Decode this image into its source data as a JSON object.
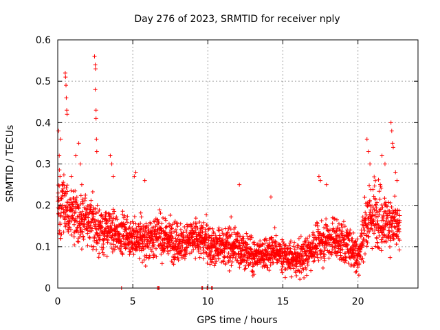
{
  "chart_data": {
    "type": "scatter",
    "title": "Day 276 of 2023, SRMTID for receiver nply",
    "xlabel": "GPS time / hours",
    "ylabel": "SRMTID / TECUs",
    "xlim": [
      0,
      24
    ],
    "ylim": [
      0,
      0.6
    ],
    "xticks": [
      0,
      5,
      10,
      15,
      20
    ],
    "xtick_labels": [
      "0",
      "5",
      "10",
      "15",
      "20"
    ],
    "yticks": [
      0,
      0.1,
      0.2,
      0.3,
      0.4,
      0.5,
      0.6
    ],
    "ytick_labels": [
      "0",
      "0.1",
      "0.2",
      "0.3",
      "0.4",
      "0.5",
      "0.6"
    ],
    "grid": true,
    "marker": "+",
    "series": [
      {
        "name": "srmtid",
        "color": "#ff0000",
        "envelope": {
          "x": [
            0,
            0.5,
            1,
            1.5,
            2,
            2.5,
            3,
            3.5,
            4,
            4.5,
            5,
            5.5,
            6,
            6.5,
            7,
            7.5,
            8,
            8.5,
            9,
            9.5,
            10,
            10.5,
            11,
            11.5,
            12,
            12.5,
            13,
            13.5,
            14,
            14.5,
            15,
            15.5,
            16,
            16.5,
            17,
            17.5,
            18,
            18.5,
            19,
            19.5,
            20,
            20.5,
            21,
            21.5,
            22,
            22.5,
            22.8
          ],
          "center": [
            0.2,
            0.19,
            0.18,
            0.17,
            0.16,
            0.15,
            0.14,
            0.14,
            0.13,
            0.13,
            0.12,
            0.12,
            0.12,
            0.13,
            0.12,
            0.12,
            0.11,
            0.11,
            0.12,
            0.12,
            0.11,
            0.1,
            0.1,
            0.1,
            0.1,
            0.09,
            0.08,
            0.08,
            0.09,
            0.09,
            0.08,
            0.07,
            0.07,
            0.08,
            0.1,
            0.11,
            0.12,
            0.12,
            0.11,
            0.1,
            0.08,
            0.16,
            0.18,
            0.17,
            0.16,
            0.15,
            0.13
          ],
          "spread": [
            0.06,
            0.06,
            0.05,
            0.05,
            0.05,
            0.05,
            0.05,
            0.04,
            0.04,
            0.04,
            0.04,
            0.04,
            0.04,
            0.04,
            0.04,
            0.04,
            0.04,
            0.04,
            0.04,
            0.04,
            0.04,
            0.04,
            0.04,
            0.04,
            0.04,
            0.035,
            0.03,
            0.03,
            0.035,
            0.035,
            0.03,
            0.03,
            0.03,
            0.035,
            0.04,
            0.04,
            0.04,
            0.04,
            0.04,
            0.04,
            0.04,
            0.06,
            0.06,
            0.06,
            0.06,
            0.06,
            0.05
          ]
        },
        "points_per_hour": 110,
        "seed": 276,
        "points": [
          [
            0.05,
            0.38
          ],
          [
            0.1,
            0.32
          ],
          [
            0.15,
            0.27
          ],
          [
            0.2,
            0.36
          ],
          [
            0.3,
            0.25
          ],
          [
            0.5,
            0.52
          ],
          [
            0.52,
            0.51
          ],
          [
            0.55,
            0.49
          ],
          [
            0.57,
            0.46
          ],
          [
            0.6,
            0.43
          ],
          [
            0.62,
            0.42
          ],
          [
            0.9,
            0.27
          ],
          [
            1.2,
            0.32
          ],
          [
            1.4,
            0.35
          ],
          [
            1.5,
            0.3
          ],
          [
            1.6,
            0.25
          ],
          [
            2.45,
            0.56
          ],
          [
            2.5,
            0.54
          ],
          [
            2.52,
            0.53
          ],
          [
            2.5,
            0.48
          ],
          [
            2.55,
            0.43
          ],
          [
            2.55,
            0.41
          ],
          [
            2.58,
            0.36
          ],
          [
            2.6,
            0.33
          ],
          [
            3.5,
            0.32
          ],
          [
            3.6,
            0.3
          ],
          [
            3.7,
            0.27
          ],
          [
            5.1,
            0.27
          ],
          [
            5.2,
            0.28
          ],
          [
            5.8,
            0.26
          ],
          [
            12.1,
            0.25
          ],
          [
            14.2,
            0.22
          ],
          [
            17.4,
            0.27
          ],
          [
            17.5,
            0.26
          ],
          [
            17.9,
            0.25
          ],
          [
            20.6,
            0.36
          ],
          [
            20.7,
            0.33
          ],
          [
            20.8,
            0.3
          ],
          [
            21.6,
            0.32
          ],
          [
            21.8,
            0.3
          ],
          [
            22.2,
            0.4
          ],
          [
            22.25,
            0.38
          ],
          [
            22.3,
            0.35
          ],
          [
            22.35,
            0.34
          ],
          [
            22.5,
            0.28
          ],
          [
            22.6,
            0.26
          ],
          [
            4.25,
            0.0
          ],
          [
            6.65,
            0.0
          ],
          [
            6.7,
            0.0
          ],
          [
            6.75,
            0.0
          ],
          [
            9.6,
            0.0
          ],
          [
            9.65,
            0.0
          ],
          [
            9.95,
            0.0
          ],
          [
            10.0,
            0.0
          ],
          [
            10.25,
            0.0
          ],
          [
            10.3,
            0.0
          ],
          [
            13.0,
            0.03
          ],
          [
            15.9,
            0.03
          ],
          [
            16.1,
            0.04
          ],
          [
            19.9,
            0.04
          ],
          [
            20.0,
            0.05
          ]
        ]
      }
    ]
  }
}
